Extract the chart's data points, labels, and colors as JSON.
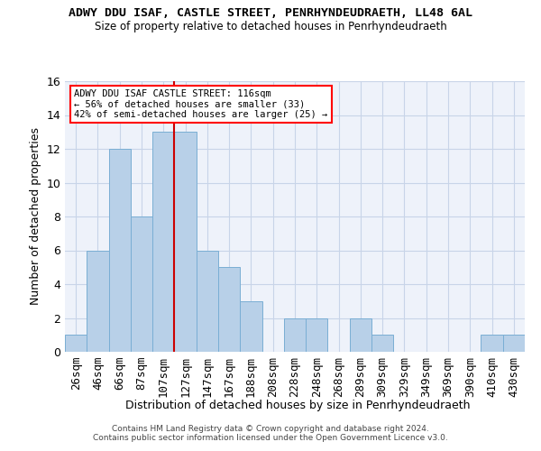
{
  "title": "ADWY DDU ISAF, CASTLE STREET, PENRHYNDEUDRAETH, LL48 6AL",
  "subtitle": "Size of property relative to detached houses in Penrhyndeudraeth",
  "xlabel": "Distribution of detached houses by size in Penrhyndeudraeth",
  "ylabel": "Number of detached properties",
  "categories": [
    "26sqm",
    "46sqm",
    "66sqm",
    "87sqm",
    "107sqm",
    "127sqm",
    "147sqm",
    "167sqm",
    "188sqm",
    "208sqm",
    "228sqm",
    "248sqm",
    "268sqm",
    "289sqm",
    "309sqm",
    "329sqm",
    "349sqm",
    "369sqm",
    "390sqm",
    "410sqm",
    "430sqm"
  ],
  "values": [
    1,
    6,
    12,
    8,
    13,
    13,
    6,
    5,
    3,
    0,
    2,
    2,
    0,
    2,
    1,
    0,
    0,
    0,
    0,
    1,
    1
  ],
  "bar_color": "#b8d0e8",
  "bar_edgecolor": "#7aajd4",
  "vline_x": 4.5,
  "vline_color": "#cc0000",
  "annotation_text": "ADWY DDU ISAF CASTLE STREET: 116sqm\n← 56% of detached houses are smaller (33)\n42% of semi-detached houses are larger (25) →",
  "ylim": [
    0,
    16
  ],
  "yticks": [
    0,
    2,
    4,
    6,
    8,
    10,
    12,
    14,
    16
  ],
  "grid_color": "#c8d4e8",
  "background_color": "#eef2fa",
  "footer_line1": "Contains HM Land Registry data © Crown copyright and database right 2024.",
  "footer_line2": "Contains public sector information licensed under the Open Government Licence v3.0."
}
